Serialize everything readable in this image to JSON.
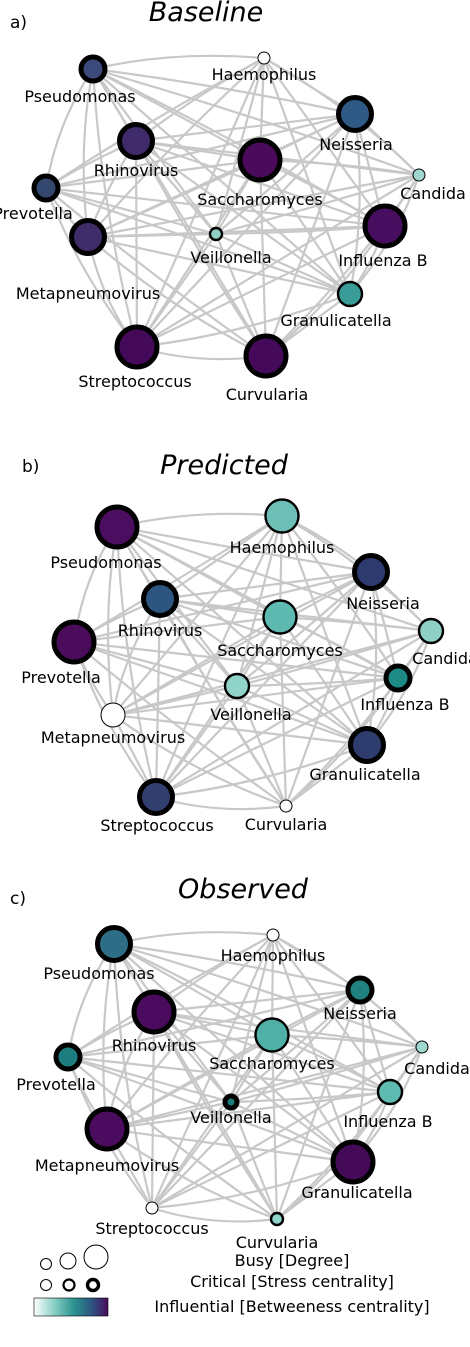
{
  "panels": [
    {
      "letter": "a)",
      "title": "Baseline",
      "nodes": [
        {
          "name": "Haemophilus",
          "fill": "#ffffff",
          "busy": 1,
          "critical": 1
        },
        {
          "name": "Pseudomonas",
          "fill": "#3b4a7a",
          "busy": 2,
          "critical": 3
        },
        {
          "name": "Neisseria",
          "fill": "#2f5a85",
          "busy": 3,
          "critical": 3
        },
        {
          "name": "Rhinovirus",
          "fill": "#3f2a6a",
          "busy": 3,
          "critical": 3
        },
        {
          "name": "Saccharomyces",
          "fill": "#4a0a5a",
          "busy": 4,
          "critical": 3
        },
        {
          "name": "Candida",
          "fill": "#9fd6d0",
          "busy": 1,
          "critical": 1
        },
        {
          "name": "Prevotella",
          "fill": "#34486f",
          "busy": 2,
          "critical": 3
        },
        {
          "name": "Veillonella",
          "fill": "#8fd1c8",
          "busy": 1,
          "critical": 2
        },
        {
          "name": "Influenza B",
          "fill": "#470d5f",
          "busy": 4,
          "critical": 3
        },
        {
          "name": "Metapneumovirus",
          "fill": "#3e2d68",
          "busy": 3,
          "critical": 3
        },
        {
          "name": "Granulicatella",
          "fill": "#3a9c98",
          "busy": 2,
          "critical": 2
        },
        {
          "name": "Streptococcus",
          "fill": "#45095a",
          "busy": 4,
          "critical": 3
        },
        {
          "name": "Curvularia",
          "fill": "#45095a",
          "busy": 4,
          "critical": 3
        }
      ]
    },
    {
      "letter": "b)",
      "title": "Predicted",
      "nodes": [
        {
          "name": "Pseudomonas",
          "fill": "#4a0d5f",
          "busy": 4,
          "critical": 3
        },
        {
          "name": "Haemophilus",
          "fill": "#6dbfb6",
          "busy": 3,
          "critical": 2
        },
        {
          "name": "Neisseria",
          "fill": "#2e3a6d",
          "busy": 3,
          "critical": 3
        },
        {
          "name": "Rhinovirus",
          "fill": "#2c5680",
          "busy": 3,
          "critical": 3
        },
        {
          "name": "Saccharomyces",
          "fill": "#5eb9b0",
          "busy": 3,
          "critical": 2
        },
        {
          "name": "Candida",
          "fill": "#8ed0c6",
          "busy": 2,
          "critical": 2
        },
        {
          "name": "Prevotella",
          "fill": "#4b0c5c",
          "busy": 4,
          "critical": 3
        },
        {
          "name": "Veillonella",
          "fill": "#8fd3c9",
          "busy": 2,
          "critical": 2
        },
        {
          "name": "Influenza B",
          "fill": "#1d8a86",
          "busy": 2,
          "critical": 3
        },
        {
          "name": "Metapneumovirus",
          "fill": "#ffffff",
          "busy": 2,
          "critical": 1
        },
        {
          "name": "Granulicatella",
          "fill": "#2f3c6e",
          "busy": 3,
          "critical": 3
        },
        {
          "name": "Streptococcus",
          "fill": "#323e6e",
          "busy": 3,
          "critical": 3
        },
        {
          "name": "Curvularia",
          "fill": "#ffffff",
          "busy": 1,
          "critical": 1
        }
      ]
    },
    {
      "letter": "c)",
      "title": "Observed",
      "nodes": [
        {
          "name": "Haemophilus",
          "fill": "#ffffff",
          "busy": 1,
          "critical": 1
        },
        {
          "name": "Pseudomonas",
          "fill": "#2d6e86",
          "busy": 3,
          "critical": 3
        },
        {
          "name": "Neisseria",
          "fill": "#1f8280",
          "busy": 2,
          "critical": 3
        },
        {
          "name": "Rhinovirus",
          "fill": "#4a0a5d",
          "busy": 4,
          "critical": 3
        },
        {
          "name": "Saccharomyces",
          "fill": "#50b0a8",
          "busy": 3,
          "critical": 2
        },
        {
          "name": "Candida",
          "fill": "#9fd6ce",
          "busy": 1,
          "critical": 1
        },
        {
          "name": "Prevotella",
          "fill": "#1d7c7e",
          "busy": 2,
          "critical": 3
        },
        {
          "name": "Veillonella",
          "fill": "#1a7d7a",
          "busy": 1,
          "critical": 3
        },
        {
          "name": "Influenza B",
          "fill": "#5fbab2",
          "busy": 2,
          "critical": 2
        },
        {
          "name": "Metapneumovirus",
          "fill": "#4b0b5e",
          "busy": 4,
          "critical": 3
        },
        {
          "name": "Granulicatella",
          "fill": "#440a58",
          "busy": 4,
          "critical": 3
        },
        {
          "name": "Streptococcus",
          "fill": "#ffffff",
          "busy": 1,
          "critical": 1
        },
        {
          "name": "Curvularia",
          "fill": "#8fd3c9",
          "busy": 1,
          "critical": 2
        }
      ]
    }
  ],
  "legend": {
    "busy": "Busy [Degree]",
    "critical": "Critical [Stress centrality]",
    "influential": "Influential [Betweeness centrality]",
    "colormap": [
      "#ffffff",
      "#7dcabf",
      "#2a8f8d",
      "#2f4f80",
      "#4a0a5a"
    ]
  },
  "colors": {
    "edge": "#c8c8c8",
    "node_stroke": "#000000",
    "text": "#000000"
  }
}
